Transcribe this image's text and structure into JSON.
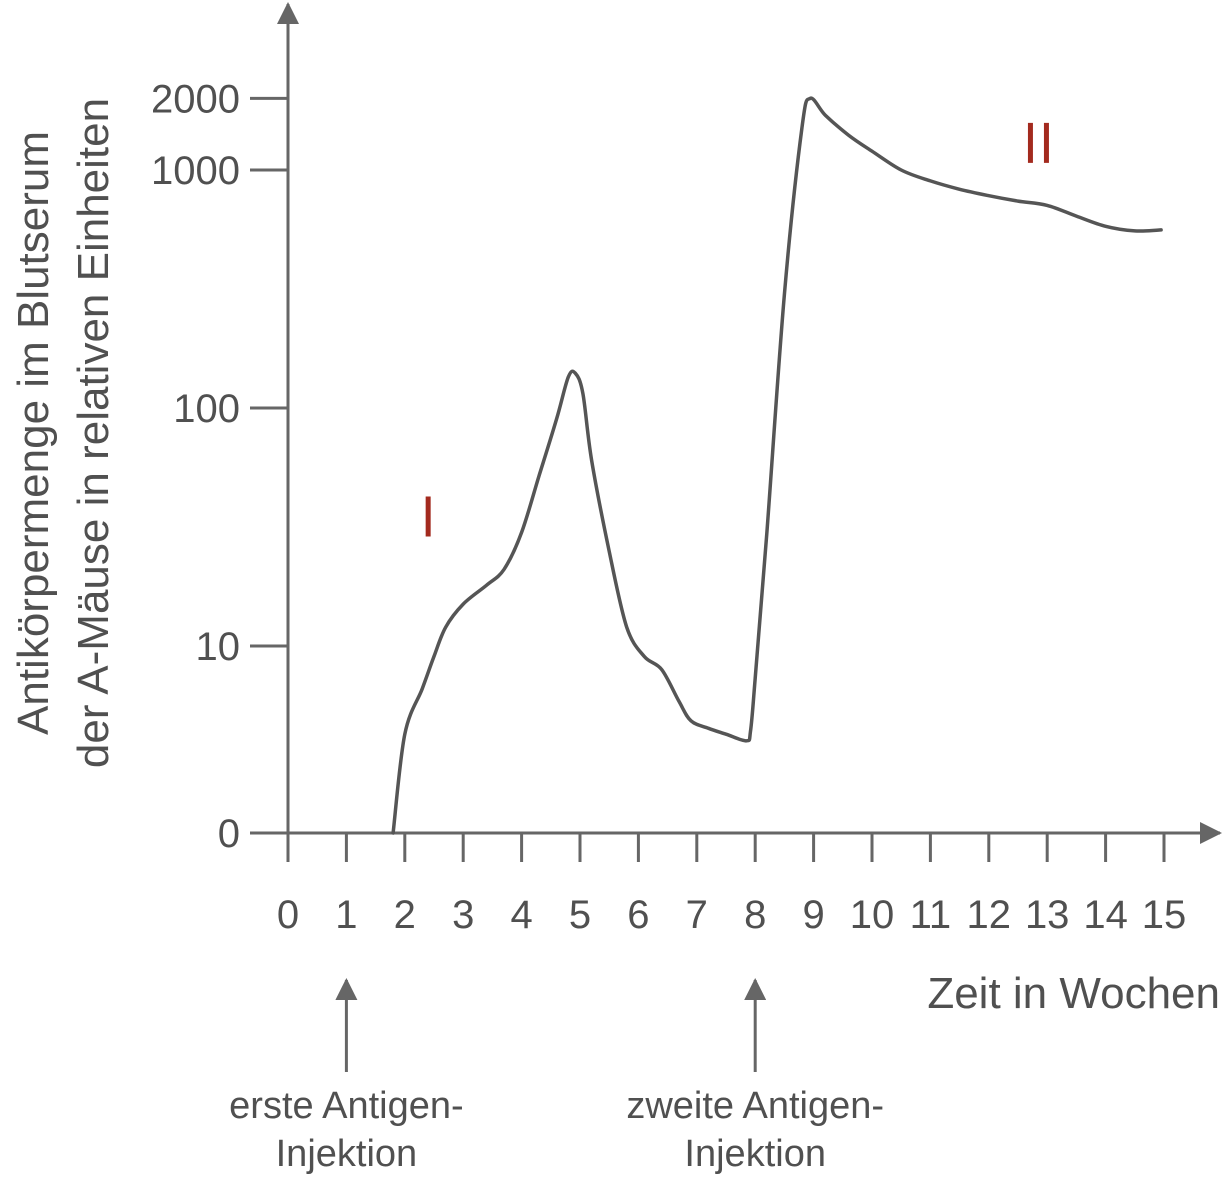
{
  "colors": {
    "axis": "#666666",
    "text": "#505050",
    "curve": "#555555",
    "marker": "#a32a1e"
  },
  "chart_data": {
    "type": "line",
    "title": "",
    "xlabel": "Zeit in Wochen",
    "ylabel_lines": [
      "Antikörpermenge im Blutserum",
      "der A-Mäuse in relativen Einheiten"
    ],
    "x_ticks": [
      "0",
      "1",
      "2",
      "3",
      "4",
      "5",
      "6",
      "7",
      "8",
      "9",
      "10",
      "11",
      "12",
      "13",
      "14",
      "15"
    ],
    "y_ticks": [
      "0",
      "10",
      "100",
      "1000",
      "2000"
    ],
    "y_scale": "log (0 at base)",
    "xlim": [
      0,
      15
    ],
    "grid": false,
    "legend": "none",
    "series": [
      {
        "x": [
          1.8,
          2.0,
          2.3,
          2.5,
          2.7,
          3.0,
          3.4,
          3.7,
          4.0,
          4.3,
          4.6,
          4.8,
          4.92,
          5.05,
          5.2,
          5.5,
          5.8,
          6.1,
          6.4,
          6.7,
          6.9,
          7.2,
          7.5,
          7.85,
          7.92,
          8.0,
          8.2,
          8.5,
          8.8,
          8.94,
          9.2,
          9.6,
          10.0,
          10.5,
          11.0,
          11.5,
          12.0,
          12.5,
          13.0,
          13.5,
          14.0,
          14.5,
          14.95
        ],
        "y": [
          0,
          1.5,
          4,
          8,
          12,
          15,
          18,
          21,
          30,
          52,
          90,
          135,
          140,
          115,
          60,
          25,
          12,
          8,
          6,
          3,
          2,
          1.7,
          1.5,
          1.3,
          1.6,
          5,
          30,
          300,
          1500,
          2000,
          1700,
          1400,
          1200,
          1000,
          900,
          830,
          780,
          740,
          710,
          640,
          580,
          555,
          560
        ]
      }
    ],
    "annotations": [
      {
        "label": "I",
        "x": 2.4,
        "y": 35
      },
      {
        "label": "II",
        "x": 12.85,
        "y": 1300
      }
    ],
    "events": [
      {
        "x": 1,
        "label_lines": [
          "erste Antigen-",
          "Injektion"
        ]
      },
      {
        "x": 8,
        "label_lines": [
          "zweite Antigen-",
          "Injektion"
        ]
      }
    ]
  }
}
